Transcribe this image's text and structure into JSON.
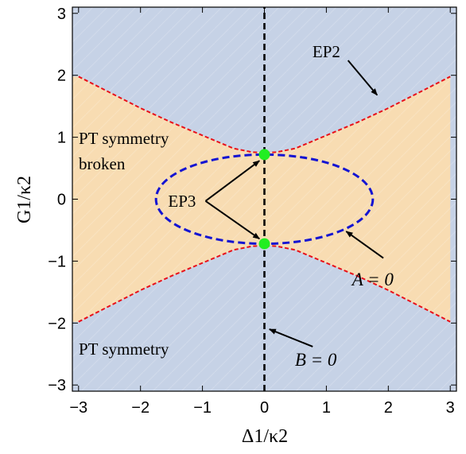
{
  "chart_data": {
    "type": "line",
    "xlabel": "Δ1/κ2",
    "ylabel": "G1/κ2",
    "xlim": [
      -3.1,
      3.1
    ],
    "ylim": [
      -3.1,
      3.1
    ],
    "xticks": [
      -3,
      -2,
      -1,
      0,
      1,
      2,
      3
    ],
    "yticks": [
      -3,
      -2,
      -1,
      0,
      1,
      2,
      3
    ],
    "grid": false,
    "region_colors": {
      "pt_symmetry": "#c6d2e6",
      "pt_broken": "#f8dcb2"
    },
    "regions": [
      {
        "name": "PT symmetry broken",
        "fill": "#f8dcb2",
        "lines": [
          "PT symmetry",
          "broken"
        ]
      },
      {
        "name": "PT symmetry",
        "fill": "#c6d2e6",
        "lines": [
          "PT symmetry"
        ]
      }
    ],
    "series": [
      {
        "role": "EP2 boundary",
        "color": "#e8101a",
        "dash": true,
        "points": [
          [
            -3.0,
            1.98
          ],
          [
            -2.0,
            1.47
          ],
          [
            -1.5,
            1.24
          ],
          [
            -1.0,
            1.03
          ],
          [
            -0.5,
            0.82
          ],
          [
            -0.2,
            0.76
          ],
          [
            0.0,
            0.75
          ],
          [
            0.2,
            0.76
          ],
          [
            0.5,
            0.82
          ],
          [
            1.0,
            1.03
          ],
          [
            1.5,
            1.24
          ],
          [
            2.0,
            1.47
          ],
          [
            3.0,
            1.98
          ]
        ]
      },
      {
        "role": "EP2 boundary (lower)",
        "color": "#e8101a",
        "dash": true,
        "points": [
          [
            -3.0,
            -1.98
          ],
          [
            -2.0,
            -1.47
          ],
          [
            -1.5,
            -1.24
          ],
          [
            -1.0,
            -1.03
          ],
          [
            -0.5,
            -0.82
          ],
          [
            -0.2,
            -0.76
          ],
          [
            0.0,
            -0.75
          ],
          [
            0.2,
            -0.76
          ],
          [
            0.5,
            -0.82
          ],
          [
            1.0,
            -1.03
          ],
          [
            1.5,
            -1.24
          ],
          [
            2.0,
            -1.47
          ],
          [
            3.0,
            -1.98
          ]
        ]
      },
      {
        "role": "A = 0 ellipse",
        "color": "#1414d2",
        "dash": true,
        "ellipse": {
          "cx": 0,
          "cy": 0,
          "rx": 1.75,
          "ry": 0.72
        }
      },
      {
        "role": "B = 0 line",
        "color": "#000000",
        "dash": true,
        "points": [
          [
            0,
            -3.1
          ],
          [
            0,
            3.1
          ]
        ]
      }
    ],
    "markers": [
      {
        "label": "EP3",
        "x": 0,
        "y": 0.72,
        "color": "#22ee22"
      },
      {
        "label": "EP3",
        "x": 0,
        "y": -0.72,
        "color": "#22ee22"
      }
    ],
    "annotations": [
      {
        "text": "EP2",
        "italic": false,
        "text_at": [
          1.0,
          2.38
        ],
        "arrow_from": [
          1.35,
          2.24
        ],
        "arrow_to": [
          1.82,
          1.68
        ]
      },
      {
        "text": "EP3",
        "italic": false,
        "text_at": [
          -1.33,
          -0.03
        ],
        "arrow_from": [
          -0.95,
          -0.03
        ],
        "arrow_to": [
          -0.08,
          0.62
        ]
      },
      {
        "text": "EP3",
        "italic": false,
        "text_at": [
          -1.33,
          -0.03
        ],
        "arrow_from": [
          -0.95,
          -0.03
        ],
        "arrow_to": [
          -0.08,
          -0.64
        ]
      },
      {
        "text": "A = 0",
        "italic": true,
        "text_at": [
          1.75,
          -1.3
        ],
        "arrow_from": [
          1.92,
          -0.95
        ],
        "arrow_to": [
          1.32,
          -0.52
        ]
      },
      {
        "text": "B = 0",
        "italic": true,
        "text_at": [
          0.83,
          -2.6
        ],
        "arrow_from": [
          0.78,
          -2.38
        ],
        "arrow_to": [
          0.08,
          -2.1
        ]
      }
    ]
  }
}
